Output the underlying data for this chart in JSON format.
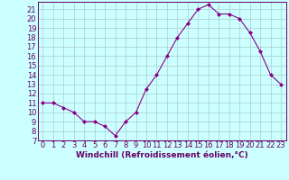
{
  "x": [
    0,
    1,
    2,
    3,
    4,
    5,
    6,
    7,
    8,
    9,
    10,
    11,
    12,
    13,
    14,
    15,
    16,
    17,
    18,
    19,
    20,
    21,
    22,
    23
  ],
  "y": [
    11,
    11,
    10.5,
    10,
    9,
    9,
    8.5,
    7.5,
    9,
    10,
    12.5,
    14,
    16,
    18,
    19.5,
    21,
    21.5,
    20.5,
    20.5,
    20,
    18.5,
    16.5,
    14,
    13
  ],
  "line_color": "#880088",
  "marker": "D",
  "marker_size": 2.0,
  "bg_color": "#ccffff",
  "grid_color": "#aacccc",
  "xlabel": "Windchill (Refroidissement éolien,°C)",
  "xlabel_fontsize": 6.5,
  "tick_fontsize": 6,
  "ylim": [
    7,
    21.8
  ],
  "xlim": [
    -0.5,
    23.5
  ],
  "yticks": [
    7,
    8,
    9,
    10,
    11,
    12,
    13,
    14,
    15,
    16,
    17,
    18,
    19,
    20,
    21
  ],
  "xticks": [
    0,
    1,
    2,
    3,
    4,
    5,
    6,
    7,
    8,
    9,
    10,
    11,
    12,
    13,
    14,
    15,
    16,
    17,
    18,
    19,
    20,
    21,
    22,
    23
  ],
  "text_color": "#660066"
}
